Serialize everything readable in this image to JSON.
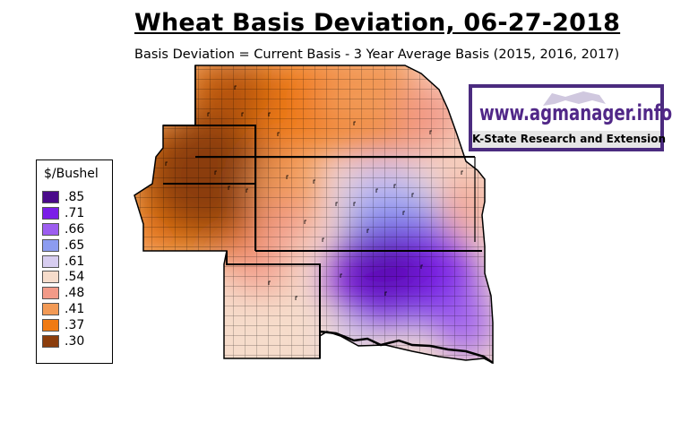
{
  "title": "Wheat Basis Deviation, 06-27-2018",
  "subtitle": "Basis Deviation = Current Basis - 3 Year Average Basis (2015, 2016, 2017)",
  "legend": {
    "title": "$/Bushel",
    "items": [
      {
        "label": ".85",
        "color": "#4a0a8a"
      },
      {
        "label": ".71",
        "color": "#7b1ee8"
      },
      {
        "label": ".66",
        "color": "#9d5ef0"
      },
      {
        "label": ".65",
        "color": "#8c9cf0"
      },
      {
        "label": ".61",
        "color": "#d7cdf0"
      },
      {
        "label": ".54",
        "color": "#f6dccb"
      },
      {
        "label": ".48",
        "color": "#f29a88"
      },
      {
        "label": ".41",
        "color": "#f29a56"
      },
      {
        "label": ".37",
        "color": "#ef7a12"
      },
      {
        "label": ".30",
        "color": "#8b3d0c"
      }
    ]
  },
  "logo": {
    "url": "www.agmanager.info",
    "org": "K-State Research and Extension",
    "icon": "wildcat-icon",
    "border_color": "#4b2b7f"
  },
  "colors": {
    "county_line": "#000000",
    "state_line": "#000000"
  }
}
